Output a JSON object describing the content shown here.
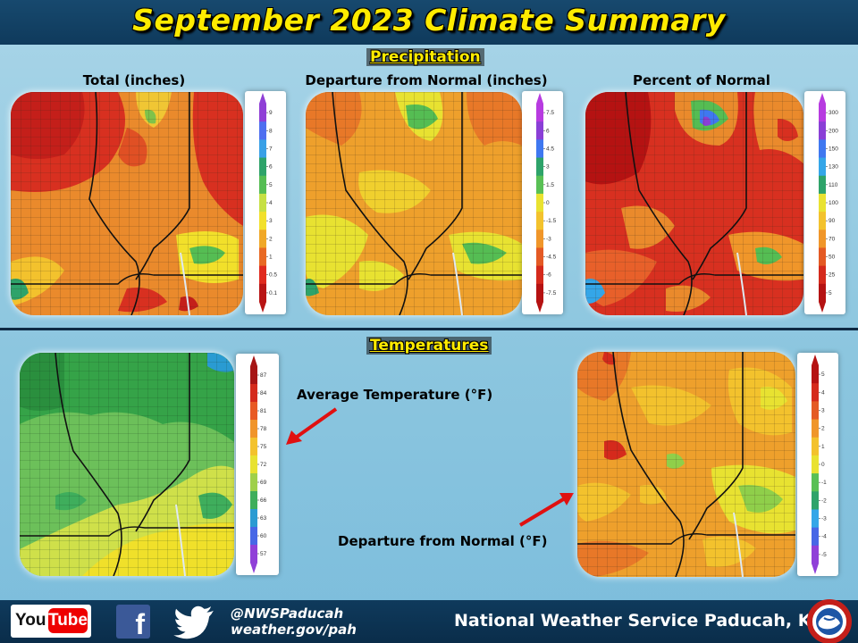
{
  "header": {
    "title": "September 2023 Climate Summary"
  },
  "precipitation": {
    "section_label": "Precipitation",
    "panels": [
      {
        "title": "Total (inches)",
        "legend": {
          "ticks": [
            "9",
            "8",
            "7",
            "6",
            "5",
            "4",
            "3",
            "2",
            "1",
            "0.5",
            "0.1"
          ],
          "colors": [
            "#8f3fd6",
            "#4f6ff0",
            "#3aa0e6",
            "#2ea36a",
            "#55bd53",
            "#c6e044",
            "#f2e02a",
            "#f0a828",
            "#e86a24",
            "#e02a1e",
            "#b81414"
          ]
        }
      },
      {
        "title": "Departure from Normal (inches)",
        "legend": {
          "ticks": [
            "7.5",
            "6",
            "4.5",
            "3",
            "1.5",
            "0",
            "-1.5",
            "-3",
            "-4.5",
            "-6",
            "-7.5"
          ],
          "colors": [
            "#b73be0",
            "#8a3fd6",
            "#3f78f0",
            "#2ea36a",
            "#59c055",
            "#e9e231",
            "#f3c22d",
            "#f0962a",
            "#e45a24",
            "#d52a1c",
            "#b51212"
          ]
        }
      },
      {
        "title": "Percent of Normal",
        "legend": {
          "ticks": [
            "300",
            "200",
            "150",
            "130",
            "110",
            "100",
            "90",
            "70",
            "50",
            "25",
            "5"
          ],
          "colors": [
            "#b73be0",
            "#8a3fd6",
            "#3f78f0",
            "#34a6e8",
            "#2ea36a",
            "#e9e231",
            "#f3c22d",
            "#f0962a",
            "#e45a24",
            "#d52a1c",
            "#b51212"
          ]
        }
      }
    ]
  },
  "temperatures": {
    "section_label": "Temperatures",
    "average": {
      "annotation": "Average Temperature (°F)",
      "legend": {
        "ticks": [
          "87",
          "84",
          "81",
          "78",
          "75",
          "72",
          "69",
          "66",
          "63",
          "60",
          "57"
        ],
        "colors": [
          "#a61515",
          "#d42a1c",
          "#e85a24",
          "#f0942a",
          "#f3c22d",
          "#e8e231",
          "#9fd04a",
          "#3fae5c",
          "#2a9bd2",
          "#4767e6",
          "#9040d8"
        ]
      }
    },
    "departure": {
      "annotation": "Departure from Normal (°F)",
      "legend": {
        "ticks": [
          "5",
          "4",
          "3",
          "2",
          "1",
          "0",
          "-1",
          "-2",
          "-3",
          "-4",
          "-5"
        ],
        "colors": [
          "#b51212",
          "#d52a1c",
          "#e45a24",
          "#f0962a",
          "#f3c22d",
          "#e9e231",
          "#59c055",
          "#2ea36a",
          "#34a6e8",
          "#4767e6",
          "#9040d8"
        ]
      }
    }
  },
  "footer": {
    "youtube_you": "You",
    "youtube_tube": "Tube",
    "facebook_glyph": "f",
    "handle": "@NWSPaducah",
    "website": "weather.gov/pah",
    "office": "National Weather Service Paducah, KY"
  },
  "icons": [
    "youtube-icon",
    "facebook-icon",
    "twitter-icon",
    "nws-logo"
  ],
  "colors": {
    "header_bg": "#17496e",
    "title_yellow": "#ffeb00",
    "arrow_red": "#e01010"
  }
}
